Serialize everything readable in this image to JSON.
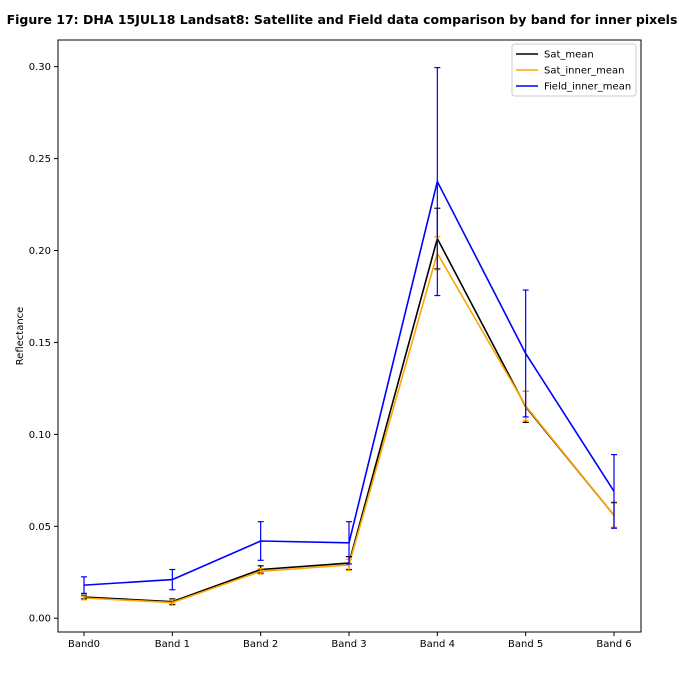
{
  "chart_data": {
    "type": "line",
    "title": "Figure 17: DHA 15JUL18  Landsat8: Satellite and Field data comparison by band for inner pixels",
    "xlabel": "",
    "ylabel": "Reflectance",
    "categories": [
      "Band0",
      "Band 1",
      "Band 2",
      "Band 3",
      "Band 4",
      "Band 5",
      "Band 6"
    ],
    "ylim": [
      -0.0075,
      0.3145
    ],
    "yticks": [
      0.0,
      0.05,
      0.1,
      0.15,
      0.2,
      0.25,
      0.3
    ],
    "ytick_labels": [
      "0.00",
      "0.05",
      "0.10",
      "0.15",
      "0.20",
      "0.25",
      "0.30"
    ],
    "grid": false,
    "legend_position": "top-right",
    "series": [
      {
        "name": "Sat_mean",
        "color": "#000000",
        "values": [
          0.0115,
          0.009,
          0.0265,
          0.03,
          0.2065,
          0.115,
          0.056
        ],
        "error": [
          0.001,
          0.0015,
          0.002,
          0.0035,
          0.0165,
          0.0085,
          0.007
        ]
      },
      {
        "name": "Sat_inner_mean",
        "color": "#ffa500",
        "values": [
          0.011,
          0.0085,
          0.0255,
          0.029,
          0.1985,
          0.1155,
          0.056
        ],
        "error": [
          0.001,
          0.0015,
          0.0015,
          0.003,
          0.009,
          0.008,
          0.0065
        ]
      },
      {
        "name": "Field_inner_mean",
        "color": "#0000ff",
        "values": [
          0.018,
          0.021,
          0.042,
          0.041,
          0.2375,
          0.144,
          0.069
        ],
        "error": [
          0.0045,
          0.0055,
          0.0105,
          0.0115,
          0.062,
          0.0345,
          0.02
        ]
      }
    ]
  }
}
